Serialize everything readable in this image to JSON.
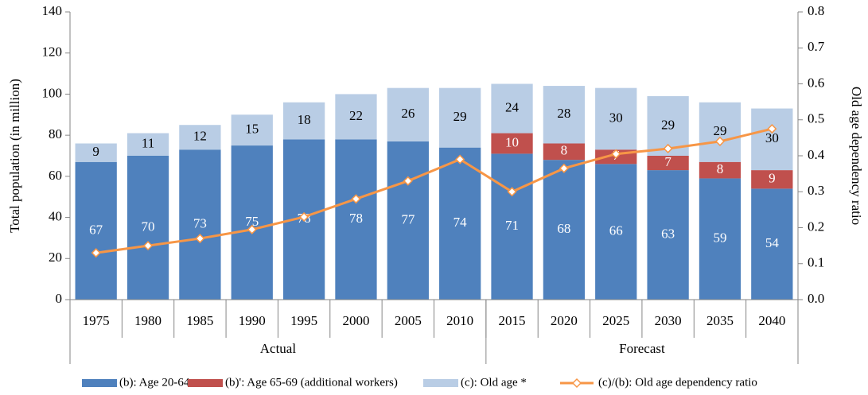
{
  "chart_data": {
    "type": "bar",
    "categories": [
      "1975",
      "1980",
      "1985",
      "1990",
      "1995",
      "2000",
      "2005",
      "2010",
      "2015",
      "2020",
      "2025",
      "2030",
      "2035",
      "2040"
    ],
    "category_groups": [
      {
        "label": "Actual",
        "count": 8
      },
      {
        "label": "Forecast",
        "count": 6
      }
    ],
    "stacked": true,
    "series": [
      {
        "name": "(b): Age 20-64",
        "color": "#4f81bd",
        "label_color": "#ffffff",
        "values": [
          67,
          70,
          73,
          75,
          78,
          78,
          77,
          74,
          71,
          68,
          66,
          63,
          59,
          54
        ]
      },
      {
        "name": "(b)': Age 65-69 (additional workers)",
        "color": "#c0504d",
        "label_color": "#ffffff",
        "values": [
          null,
          null,
          null,
          null,
          null,
          null,
          null,
          null,
          10,
          8,
          7,
          7,
          8,
          9
        ]
      },
      {
        "name": "(c): Old age *",
        "color": "#b9cde5",
        "label_color": "#000000",
        "values": [
          9,
          11,
          12,
          15,
          18,
          22,
          26,
          29,
          24,
          28,
          30,
          29,
          29,
          30
        ]
      },
      {
        "name": "(c)/(b): Old age dependency ratio",
        "type": "line",
        "axis": "y2",
        "color": "#f79646",
        "values": [
          0.13,
          0.15,
          0.17,
          0.195,
          0.23,
          0.28,
          0.33,
          0.39,
          0.3,
          0.365,
          0.405,
          0.42,
          0.44,
          0.475
        ]
      }
    ],
    "ylabel": "Total population (in million)",
    "y2label": "Old age dependency ratio",
    "ylim": [
      0,
      140
    ],
    "yticks": [
      0,
      20,
      40,
      60,
      80,
      100,
      120,
      140
    ],
    "y2lim": [
      0,
      0.8
    ],
    "y2ticks": [
      {
        "value": 0,
        "label": "0.0"
      },
      0.1,
      0.2,
      0.3,
      0.4,
      0.5,
      0.6,
      0.7,
      0.8
    ],
    "grid": false,
    "legend": "bottom"
  }
}
